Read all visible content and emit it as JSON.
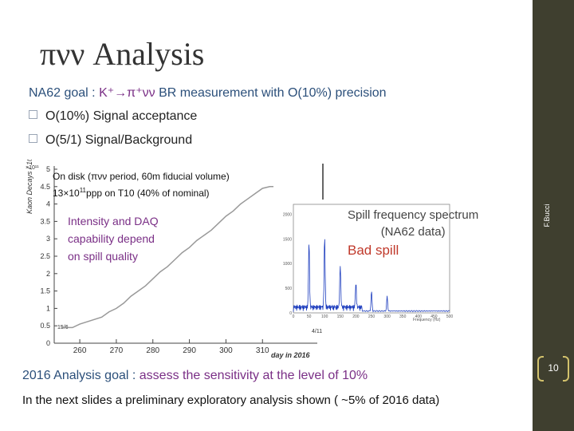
{
  "title": "πνν Analysis",
  "goal": {
    "prefix": "NA62 goal : ",
    "highlight": "K⁺→π⁺νν",
    "rest": " BR measurement with O(10%) precision"
  },
  "bullets": [
    "O(10%) Signal acceptance",
    "O(5/1) Signal/Background"
  ],
  "main_chart": {
    "ylabel": "Kaon Decays / 10¹¹",
    "xlabel": "day in 2016",
    "x_ticks": [
      "260",
      "270",
      "280",
      "290",
      "300",
      "310"
    ],
    "y_ticks": [
      "0",
      "0.5",
      "1",
      "1.5",
      "2",
      "2.5",
      "3",
      "3.5",
      "4",
      "4.5",
      "5"
    ],
    "start_label": "15/6",
    "end_label": "4/11",
    "y_exp": "×10¹¹"
  },
  "ondisk": {
    "line1": "On disk (πνν period, 60m fiducial volume)",
    "line2_pre": "13×10",
    "line2_sup": "11",
    "line2_post": "ppp on T10 (40% of nominal)"
  },
  "intensity_note": [
    "Intensity and DAQ",
    "capability depend",
    "on spill quality"
  ],
  "spectrum": {
    "title_line1": "Spill frequency spectrum",
    "title_line2": "(NA62 data)",
    "bad": "Bad spill",
    "xlabel": "Frequency (Hz)",
    "y_ticks": [
      "0",
      "500",
      "1000",
      "1500",
      "2000"
    ],
    "x_ticks": [
      "0",
      "50",
      "100",
      "150",
      "200",
      "250",
      "300",
      "350",
      "400",
      "450",
      "500"
    ]
  },
  "goal2": {
    "prefix": "2016 Analysis goal : ",
    "highlight": "assess the sensitivity at the level of 10%"
  },
  "next_line": "In the next slides a preliminary exploratory analysis shown ( ~5% of 2016 data)",
  "sidebar": {
    "author": "F.Bucci",
    "page": "10"
  },
  "chart_data": {
    "type": "line",
    "xlabel": "day in 2016",
    "ylabel": "Kaon Decays / 10¹¹",
    "xlim": [
      253,
      325
    ],
    "ylim": [
      0,
      5
    ],
    "series": [
      {
        "x": [
          255,
          258,
          260,
          263,
          266,
          268,
          270,
          272,
          274,
          276,
          278,
          280,
          282,
          284,
          286,
          288,
          290,
          292,
          294,
          296,
          298,
          300,
          302,
          304,
          306,
          308,
          310,
          312,
          313
        ],
        "y": [
          0.45,
          0.45,
          0.55,
          0.65,
          0.75,
          0.9,
          1.0,
          1.15,
          1.35,
          1.5,
          1.65,
          1.85,
          2.05,
          2.2,
          2.4,
          2.6,
          2.75,
          2.95,
          3.1,
          3.25,
          3.45,
          3.65,
          3.8,
          4.0,
          4.15,
          4.3,
          4.45,
          4.5,
          4.5
        ]
      }
    ]
  }
}
